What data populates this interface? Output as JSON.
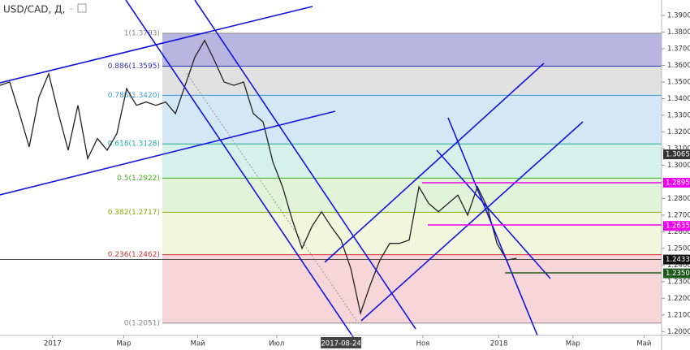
{
  "chart_data": {
    "type": "line",
    "title": "USD/CAD, Д,",
    "title_suffix": "-",
    "series": [
      {
        "name": "USD/CAD",
        "color": "#222222",
        "values": [
          1.348,
          1.35,
          1.331,
          1.311,
          1.341,
          1.355,
          1.331,
          1.309,
          1.336,
          1.304,
          1.316,
          1.309,
          1.319,
          1.346,
          1.336,
          1.338,
          1.336,
          1.338,
          1.331,
          1.348,
          1.365,
          1.375,
          1.363,
          1.35,
          1.348,
          1.35,
          1.331,
          1.326,
          1.302,
          1.287,
          1.267,
          1.25,
          1.263,
          1.272,
          1.263,
          1.255,
          1.238,
          1.211,
          1.228,
          1.243,
          1.253,
          1.253,
          1.255,
          1.287,
          1.277,
          1.272,
          1.277,
          1.282,
          1.27,
          1.287,
          1.275,
          1.253,
          1.243,
          1.244
        ]
      }
    ],
    "xlim": [
      0,
      67.9
    ],
    "xticks": [
      {
        "value": 5.4,
        "label": "2017"
      },
      {
        "value": 12.7,
        "label": "Мар"
      },
      {
        "value": 20.3,
        "label": "Май"
      },
      {
        "value": 28.4,
        "label": "Июл"
      },
      {
        "value": 35,
        "label": "2017-08-24",
        "highlight": true
      },
      {
        "value": 43.4,
        "label": "Ноя"
      },
      {
        "value": 51.2,
        "label": "2018"
      },
      {
        "value": 58.8,
        "label": "Мар"
      },
      {
        "value": 66.1,
        "label": "Май"
      }
    ],
    "ylim": [
      1.1977,
      1.3993
    ],
    "yticks": [
      {
        "value": 1.2,
        "label": "1.2000"
      },
      {
        "value": 1.21,
        "label": "1.2100"
      },
      {
        "value": 1.22,
        "label": "1.2200"
      },
      {
        "value": 1.23,
        "label": "1.2300"
      },
      {
        "value": 1.24,
        "label": "1.2400"
      },
      {
        "value": 1.25,
        "label": "1.2500"
      },
      {
        "value": 1.26,
        "label": "1.2600"
      },
      {
        "value": 1.27,
        "label": "1.2700"
      },
      {
        "value": 1.28,
        "label": "1.2800"
      },
      {
        "value": 1.29,
        "label": "1.2900"
      },
      {
        "value": 1.3,
        "label": "1.3000"
      },
      {
        "value": 1.31,
        "label": "1.3100"
      },
      {
        "value": 1.32,
        "label": "1.3200"
      },
      {
        "value": 1.33,
        "label": "1.3300"
      },
      {
        "value": 1.34,
        "label": "1.3400"
      },
      {
        "value": 1.35,
        "label": "1.3500"
      },
      {
        "value": 1.36,
        "label": "1.3600"
      },
      {
        "value": 1.37,
        "label": "1.3700"
      },
      {
        "value": 1.38,
        "label": "1.3800"
      },
      {
        "value": 1.39,
        "label": "1.3900"
      }
    ],
    "fib_levels": [
      {
        "value": 1.3793,
        "label": "1(1.3793)",
        "color": "#888888",
        "fill": "#a9a9dc"
      },
      {
        "value": 1.3595,
        "label": "0.886(1.3595)",
        "color": "#3030b0",
        "fill": "#dcdcdc"
      },
      {
        "value": 1.342,
        "label": "0.786(1.3420)",
        "color": "#3a9ad8",
        "fill": "#cde3f3"
      },
      {
        "value": 1.3128,
        "label": "0.618(1.3128)",
        "color": "#1fae8a",
        "fill": "#cdf0e6"
      },
      {
        "value": 1.2922,
        "label": "0.5(1.2922)",
        "color": "#44aa22",
        "fill": "#dcf2d2"
      },
      {
        "value": 1.2717,
        "label": "0.382(1.2717)",
        "color": "#88aa00",
        "fill": "#eef5d6"
      },
      {
        "value": 1.2462,
        "label": "0.236(1.2462)",
        "color": "#cc3333",
        "fill": "#f4cfd2"
      },
      {
        "value": 1.2051,
        "label": "0(1.2051)",
        "color": "#888888"
      }
    ],
    "price_tags": [
      {
        "value": 1.3065,
        "label": "1.3065",
        "color": "#333333"
      },
      {
        "value": 1.2895,
        "label": "1.2895",
        "color": "#ee00ee"
      },
      {
        "value": 1.2635,
        "label": "1.2635",
        "color": "#ee00ee"
      },
      {
        "value": 1.2433,
        "label": "1.2433",
        "color": "#111111"
      },
      {
        "value": 1.235,
        "label": "1.2350",
        "color": "#1d5a1d"
      }
    ]
  }
}
